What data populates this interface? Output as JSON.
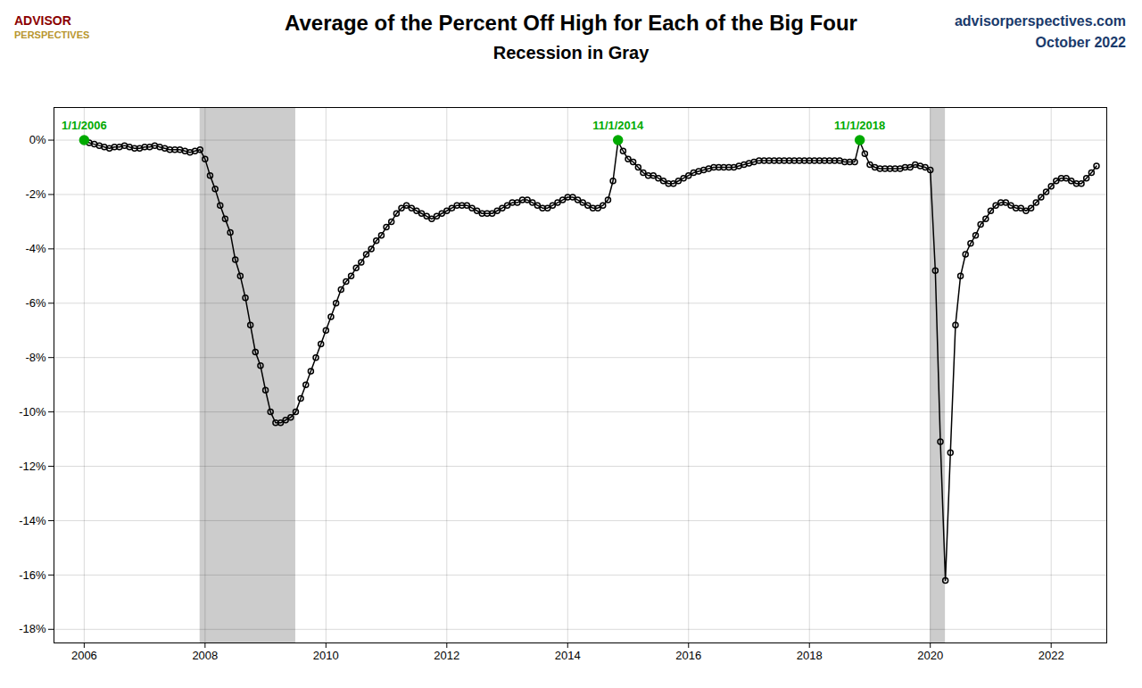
{
  "chart_data": {
    "type": "line",
    "title": "Average of the Percent Off High for Each of the Big Four",
    "subtitle": "Recession in Gray",
    "watermark": [
      "advisorperspectives.com",
      "October 2022"
    ],
    "logo": [
      "ADVISOR",
      "PERSPECTIVES"
    ],
    "marker": "circle",
    "grid": true,
    "xlim": [
      2005.5,
      2022.92
    ],
    "ylim": [
      -18.5,
      1.2
    ],
    "xticks": [
      2006,
      2008,
      2010,
      2012,
      2014,
      2016,
      2018,
      2020,
      2022
    ],
    "yticks": [
      {
        "value": 0,
        "label": "0%"
      },
      {
        "value": -2,
        "label": "-2%"
      },
      {
        "value": -4,
        "label": "-4%"
      },
      {
        "value": -6,
        "label": "-6%"
      },
      {
        "value": -8,
        "label": "-8%"
      },
      {
        "value": -10,
        "label": "-10%"
      },
      {
        "value": -12,
        "label": "-12%"
      },
      {
        "value": -14,
        "label": "-14%"
      },
      {
        "value": -16,
        "label": "-16%"
      },
      {
        "value": -18,
        "label": "-18%"
      }
    ],
    "recession_bands": [
      {
        "xmin": 2007.917,
        "xmax": 2009.5,
        "color": "#cccccc"
      },
      {
        "xmin": 2020.0,
        "xmax": 2020.25,
        "color": "#cccccc"
      }
    ],
    "annotations": [
      {
        "label": "1/1/2006",
        "x": 2006.0,
        "y": 0.0,
        "color": "#00aa00"
      },
      {
        "label": "11/1/2014",
        "x": 2014.833,
        "y": 0.0,
        "color": "#00aa00"
      },
      {
        "label": "11/1/2018",
        "x": 2018.833,
        "y": 0.0,
        "color": "#00aa00"
      }
    ],
    "x": [
      2006.0,
      2006.083,
      2006.167,
      2006.25,
      2006.333,
      2006.417,
      2006.5,
      2006.583,
      2006.667,
      2006.75,
      2006.833,
      2006.917,
      2007.0,
      2007.083,
      2007.167,
      2007.25,
      2007.333,
      2007.417,
      2007.5,
      2007.583,
      2007.667,
      2007.75,
      2007.833,
      2007.917,
      2008.0,
      2008.083,
      2008.167,
      2008.25,
      2008.333,
      2008.417,
      2008.5,
      2008.583,
      2008.667,
      2008.75,
      2008.833,
      2008.917,
      2009.0,
      2009.083,
      2009.167,
      2009.25,
      2009.333,
      2009.417,
      2009.5,
      2009.583,
      2009.667,
      2009.75,
      2009.833,
      2009.917,
      2010.0,
      2010.083,
      2010.167,
      2010.25,
      2010.333,
      2010.417,
      2010.5,
      2010.583,
      2010.667,
      2010.75,
      2010.833,
      2010.917,
      2011.0,
      2011.083,
      2011.167,
      2011.25,
      2011.333,
      2011.417,
      2011.5,
      2011.583,
      2011.667,
      2011.75,
      2011.833,
      2011.917,
      2012.0,
      2012.083,
      2012.167,
      2012.25,
      2012.333,
      2012.417,
      2012.5,
      2012.583,
      2012.667,
      2012.75,
      2012.833,
      2012.917,
      2013.0,
      2013.083,
      2013.167,
      2013.25,
      2013.333,
      2013.417,
      2013.5,
      2013.583,
      2013.667,
      2013.75,
      2013.833,
      2013.917,
      2014.0,
      2014.083,
      2014.167,
      2014.25,
      2014.333,
      2014.417,
      2014.5,
      2014.583,
      2014.667,
      2014.75,
      2014.833,
      2014.917,
      2015.0,
      2015.083,
      2015.167,
      2015.25,
      2015.333,
      2015.417,
      2015.5,
      2015.583,
      2015.667,
      2015.75,
      2015.833,
      2015.917,
      2016.0,
      2016.083,
      2016.167,
      2016.25,
      2016.333,
      2016.417,
      2016.5,
      2016.583,
      2016.667,
      2016.75,
      2016.833,
      2016.917,
      2017.0,
      2017.083,
      2017.167,
      2017.25,
      2017.333,
      2017.417,
      2017.5,
      2017.583,
      2017.667,
      2017.75,
      2017.833,
      2017.917,
      2018.0,
      2018.083,
      2018.167,
      2018.25,
      2018.333,
      2018.417,
      2018.5,
      2018.583,
      2018.667,
      2018.75,
      2018.833,
      2018.917,
      2019.0,
      2019.083,
      2019.167,
      2019.25,
      2019.333,
      2019.417,
      2019.5,
      2019.583,
      2019.667,
      2019.75,
      2019.833,
      2019.917,
      2020.0,
      2020.083,
      2020.167,
      2020.25,
      2020.333,
      2020.417,
      2020.5,
      2020.583,
      2020.667,
      2020.75,
      2020.833,
      2020.917,
      2021.0,
      2021.083,
      2021.167,
      2021.25,
      2021.333,
      2021.417,
      2021.5,
      2021.583,
      2021.667,
      2021.75,
      2021.833,
      2021.917,
      2022.0,
      2022.083,
      2022.167,
      2022.25,
      2022.333,
      2022.417,
      2022.5,
      2022.583,
      2022.667,
      2022.75
    ],
    "values": [
      0.0,
      -0.1,
      -0.15,
      -0.2,
      -0.25,
      -0.3,
      -0.25,
      -0.25,
      -0.2,
      -0.25,
      -0.3,
      -0.3,
      -0.25,
      -0.25,
      -0.2,
      -0.25,
      -0.3,
      -0.35,
      -0.35,
      -0.35,
      -0.4,
      -0.45,
      -0.4,
      -0.35,
      -0.7,
      -1.3,
      -1.8,
      -2.4,
      -2.9,
      -3.4,
      -4.4,
      -5.0,
      -5.8,
      -6.8,
      -7.8,
      -8.3,
      -9.2,
      -10.0,
      -10.4,
      -10.4,
      -10.3,
      -10.2,
      -10.0,
      -9.5,
      -9.0,
      -8.5,
      -8.0,
      -7.5,
      -7.0,
      -6.5,
      -6.0,
      -5.5,
      -5.2,
      -5.0,
      -4.7,
      -4.5,
      -4.2,
      -4.0,
      -3.7,
      -3.5,
      -3.2,
      -3.0,
      -2.7,
      -2.5,
      -2.4,
      -2.5,
      -2.6,
      -2.7,
      -2.8,
      -2.9,
      -2.8,
      -2.7,
      -2.6,
      -2.5,
      -2.4,
      -2.4,
      -2.4,
      -2.5,
      -2.6,
      -2.7,
      -2.7,
      -2.7,
      -2.6,
      -2.5,
      -2.4,
      -2.3,
      -2.3,
      -2.2,
      -2.2,
      -2.3,
      -2.4,
      -2.5,
      -2.5,
      -2.4,
      -2.3,
      -2.2,
      -2.1,
      -2.1,
      -2.2,
      -2.3,
      -2.4,
      -2.5,
      -2.5,
      -2.4,
      -2.2,
      -1.5,
      -0.05,
      -0.4,
      -0.7,
      -0.8,
      -1.0,
      -1.2,
      -1.3,
      -1.3,
      -1.4,
      -1.5,
      -1.6,
      -1.6,
      -1.5,
      -1.4,
      -1.3,
      -1.2,
      -1.15,
      -1.1,
      -1.05,
      -1.0,
      -1.0,
      -1.0,
      -1.0,
      -1.0,
      -0.95,
      -0.9,
      -0.85,
      -0.8,
      -0.75,
      -0.75,
      -0.75,
      -0.75,
      -0.75,
      -0.75,
      -0.75,
      -0.75,
      -0.75,
      -0.75,
      -0.75,
      -0.75,
      -0.75,
      -0.75,
      -0.75,
      -0.75,
      -0.75,
      -0.8,
      -0.8,
      -0.8,
      -0.05,
      -0.5,
      -0.9,
      -1.0,
      -1.05,
      -1.05,
      -1.05,
      -1.05,
      -1.05,
      -1.0,
      -1.0,
      -0.9,
      -0.95,
      -1.0,
      -1.1,
      -4.8,
      -11.1,
      -16.2,
      -11.5,
      -6.8,
      -5.0,
      -4.2,
      -3.8,
      -3.5,
      -3.1,
      -2.9,
      -2.6,
      -2.4,
      -2.3,
      -2.3,
      -2.4,
      -2.5,
      -2.5,
      -2.6,
      -2.5,
      -2.3,
      -2.1,
      -1.9,
      -1.7,
      -1.5,
      -1.4,
      -1.4,
      -1.5,
      -1.6,
      -1.6,
      -1.4,
      -1.2,
      -0.95
    ]
  }
}
